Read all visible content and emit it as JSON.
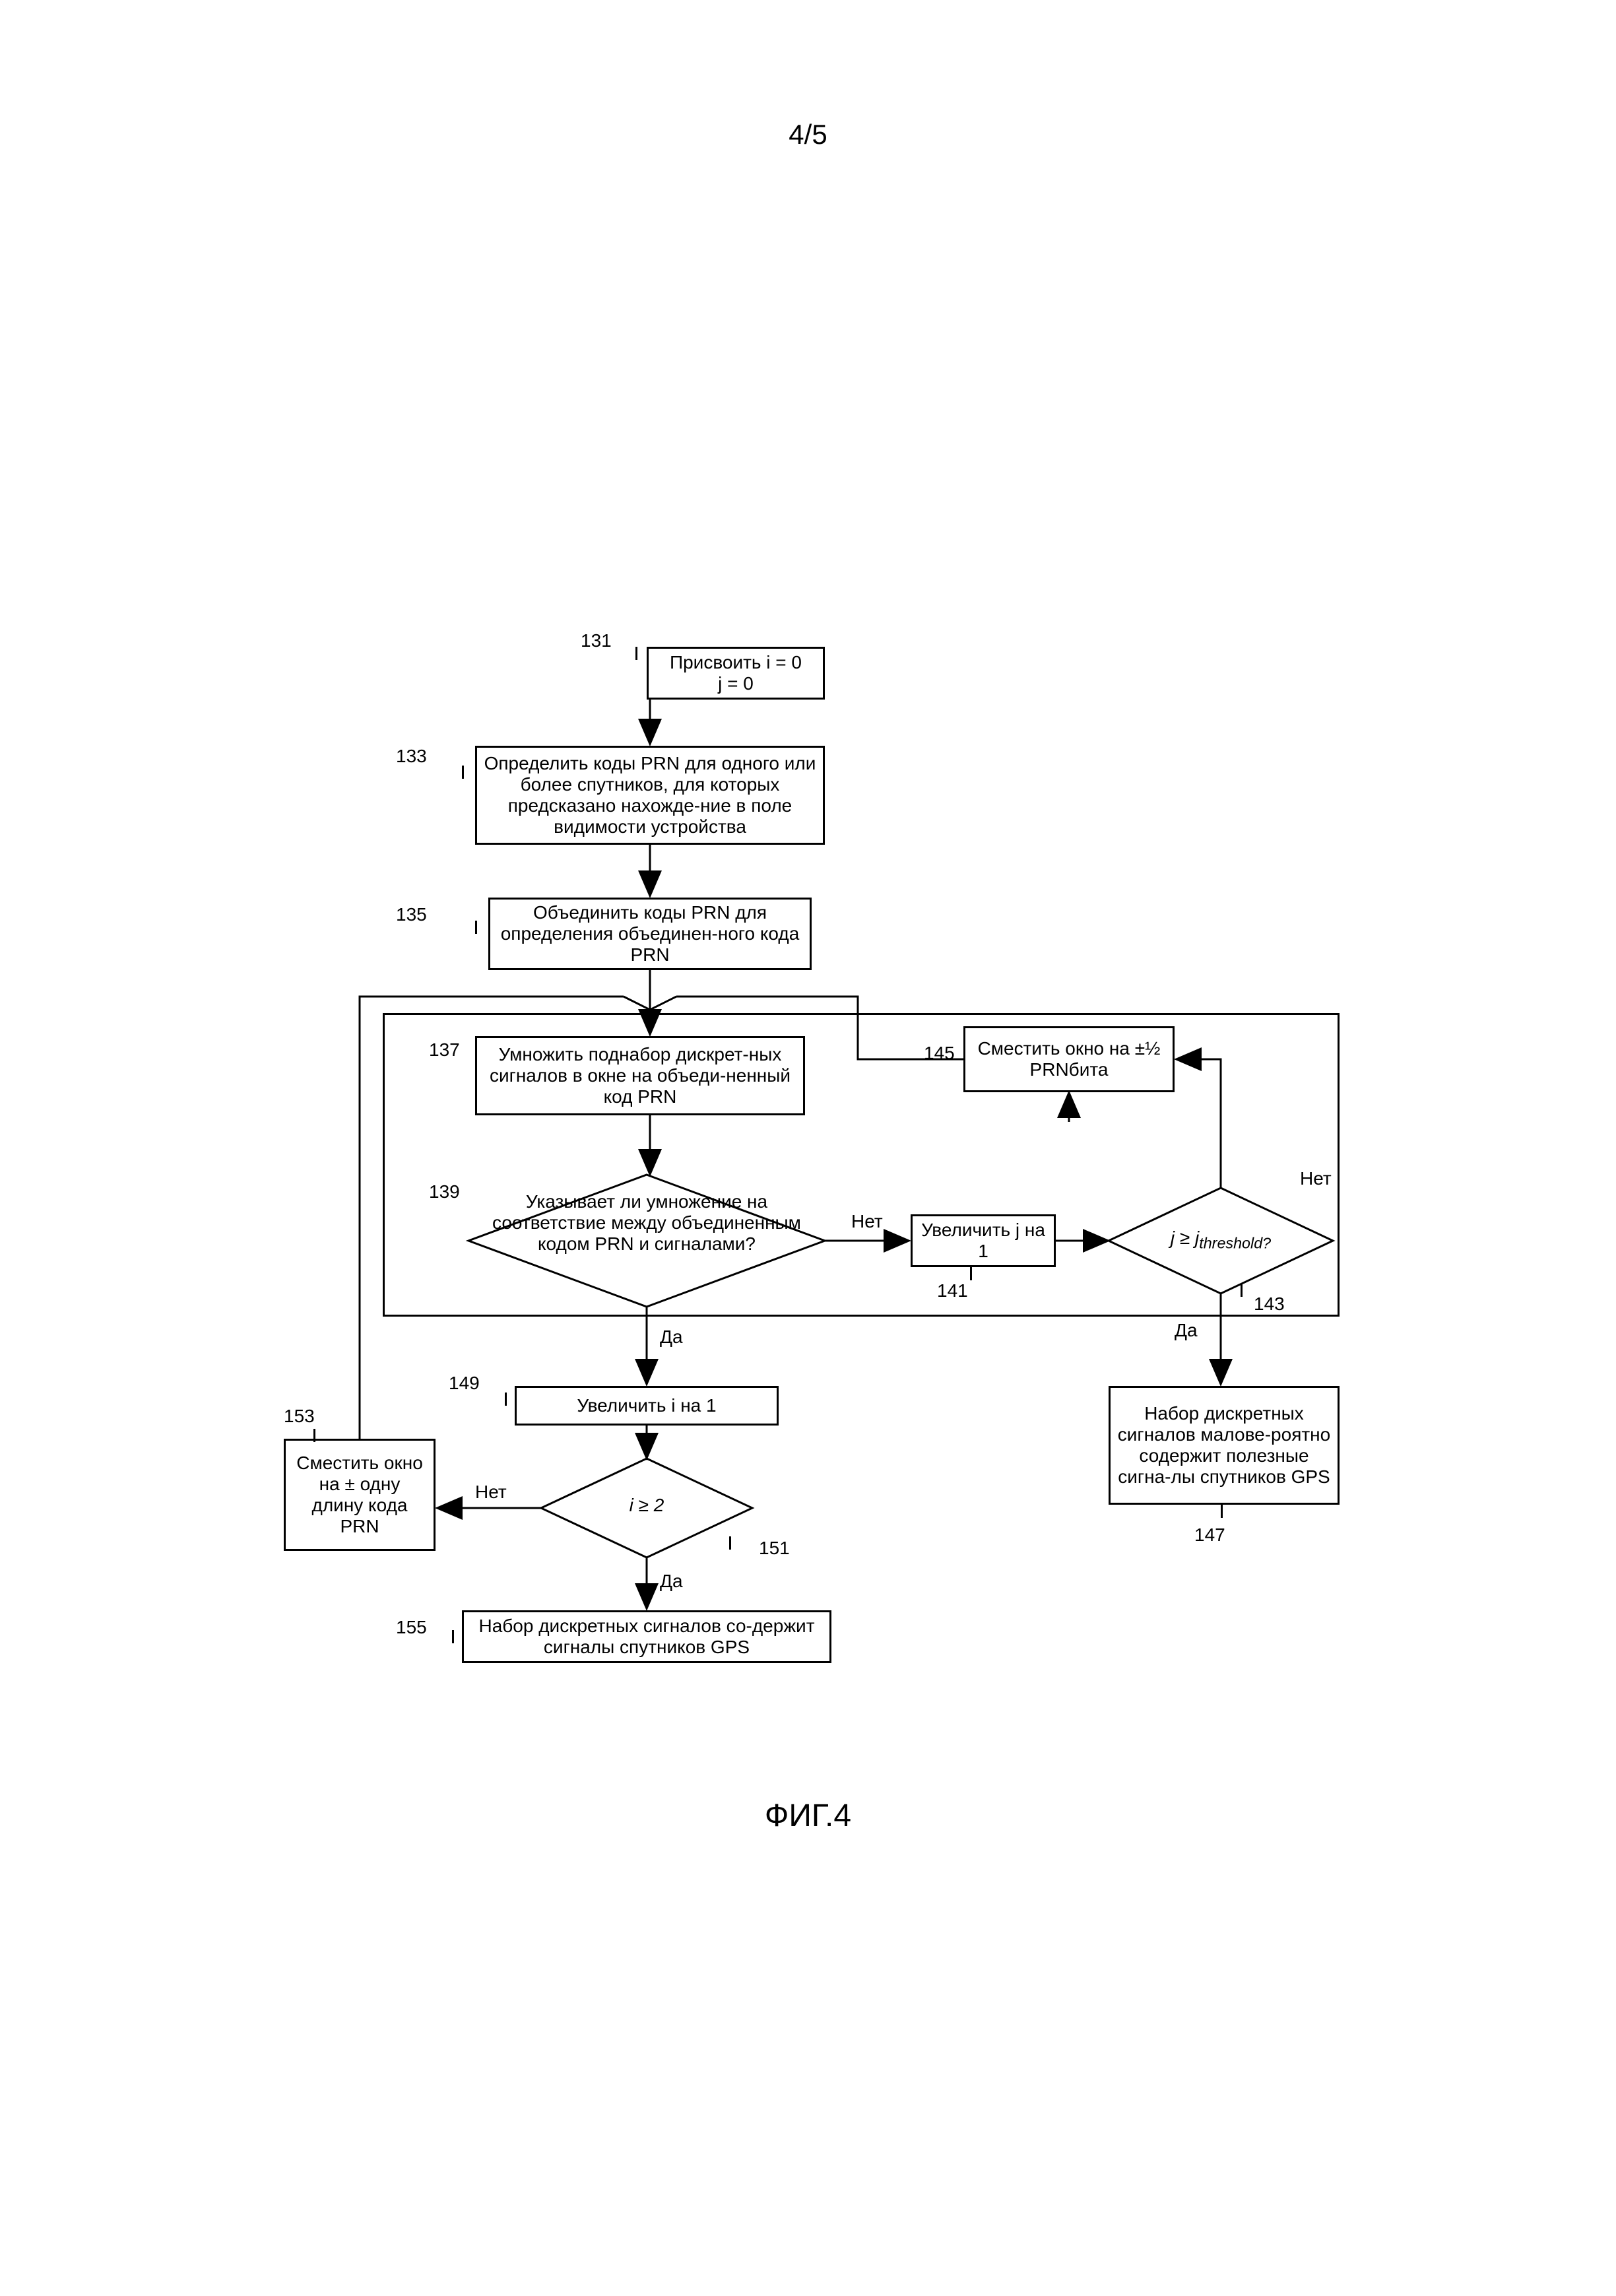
{
  "page_number": "4/5",
  "figure_label": "ФИГ.4",
  "colors": {
    "stroke": "#000000",
    "background": "#ffffff"
  },
  "stroke_width": 3,
  "font_family": "Arial",
  "font_size_node": 28,
  "font_size_label": 28,
  "nodes": {
    "n131": {
      "ref": "131",
      "text": "Присвоить i = 0\nj = 0"
    },
    "n133": {
      "ref": "133",
      "text": "Определить коды PRN для одного или более спутников, для которых предсказано нахожде-ние в поле видимости устройства"
    },
    "n135": {
      "ref": "135",
      "text": "Объединить коды PRN для определения объединен-ного кода PRN"
    },
    "n137": {
      "ref": "137",
      "text": "Умножить поднабор дискрет-ных сигналов в окне на объеди-ненный код PRN"
    },
    "n139": {
      "ref": "139",
      "text": "Указывает ли умножение на соответствие между объединенным кодом PRN и сигналами?"
    },
    "n141": {
      "ref": "141",
      "text": "Увеличить j на 1"
    },
    "n143": {
      "ref": "143",
      "text": "j ≥ jthreshold?"
    },
    "n145": {
      "ref": "145",
      "text": "Сместить окно на ±½ PRNбита"
    },
    "n147": {
      "ref": "147",
      "text": "Набор дискретных сигналов малове-роятно содержит полезные сигна-лы спутников GPS"
    },
    "n149": {
      "ref": "149",
      "text": "Увеличить i на 1"
    },
    "n151": {
      "ref": "151",
      "text": "i ≥ 2"
    },
    "n153": {
      "ref": "153",
      "text": "Сместить окно на ± одну длину кода PRN"
    },
    "n155": {
      "ref": "155",
      "text": "Набор дискретных сигналов со-держит сигналы спутников GPS"
    }
  },
  "edge_labels": {
    "yes_139": "Да",
    "no_139": "Нет",
    "yes_143": "Да",
    "no_143": "Нет",
    "yes_151": "Да",
    "no_151": "Нет"
  }
}
